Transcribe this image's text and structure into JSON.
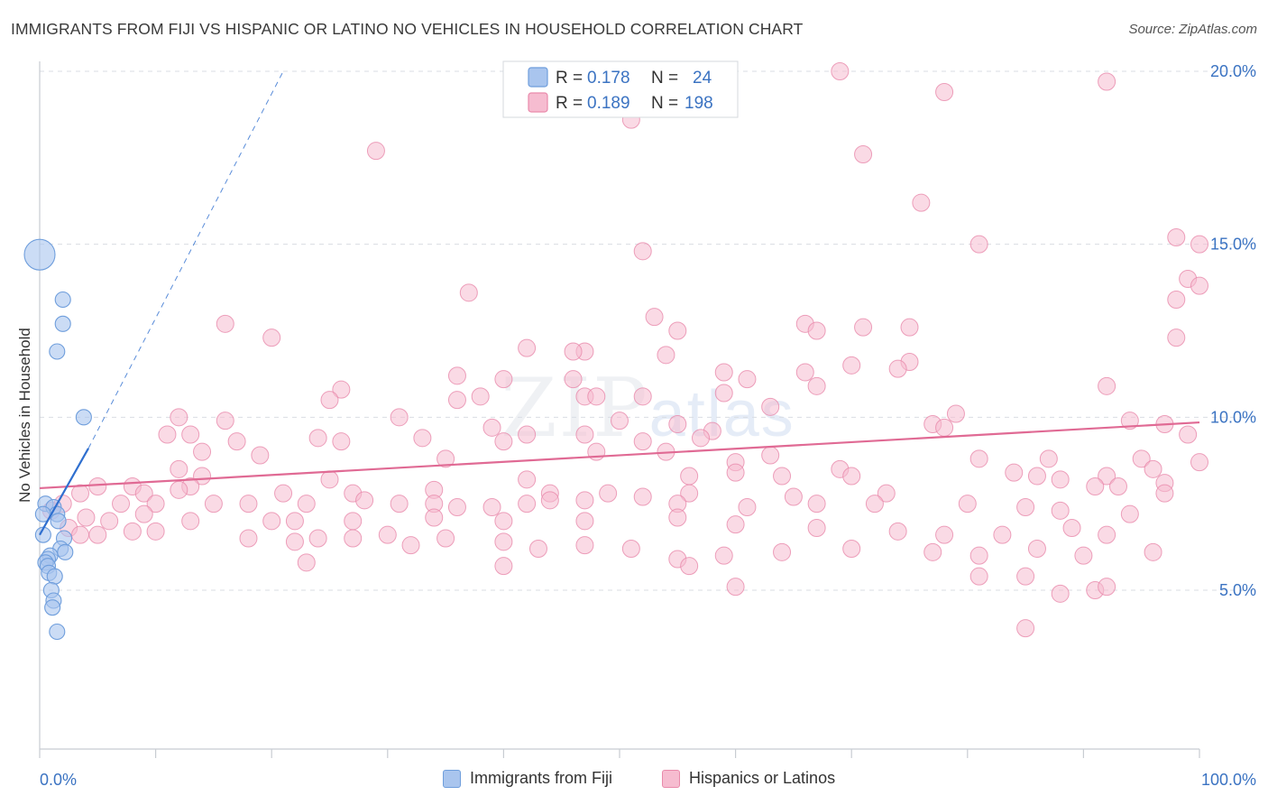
{
  "header": {
    "title": "IMMIGRANTS FROM FIJI VS HISPANIC OR LATINO NO VEHICLES IN HOUSEHOLD CORRELATION CHART",
    "source": "Source: ZipAtlas.com"
  },
  "watermark": {
    "zip": "ZIP",
    "atlas": "atlas"
  },
  "colors": {
    "fiji_fill": "#a9c5ee",
    "fiji_stroke": "#6f9edc",
    "fiji_line": "#2f6fcf",
    "hisp_fill": "#f6bcd0",
    "hisp_stroke": "#e98aab",
    "hisp_line": "#e06a94",
    "tick_text": "#3b73c2",
    "grid": "#d9dde3"
  },
  "legend": {
    "rows": [
      {
        "r_label": "R = ",
        "r_value": "0.178",
        "n_label": "N = ",
        "n_value": "24"
      },
      {
        "r_label": "R = ",
        "r_value": "0.189",
        "n_label": "N = ",
        "n_value": "198"
      }
    ]
  },
  "bottom_legend": {
    "fiji": "Immigrants from Fiji",
    "hisp": "Hispanics or Latinos"
  },
  "chart_data": {
    "type": "scatter",
    "title": "IMMIGRANTS FROM FIJI VS HISPANIC OR LATINO NO VEHICLES IN HOUSEHOLD CORRELATION CHART",
    "xlabel": "",
    "ylabel": "No Vehicles in Household",
    "xlim": [
      0,
      100
    ],
    "ylim": [
      0,
      21
    ],
    "x_tick_labels": [
      "0.0%",
      "100.0%"
    ],
    "y_ticks": [
      5,
      10,
      15,
      20
    ],
    "y_tick_labels": [
      "5.0%",
      "10.0%",
      "15.0%",
      "20.0%"
    ],
    "grid": true,
    "legend_position": "top-center",
    "series": [
      {
        "name": "Immigrants from Fiji",
        "r": 0.178,
        "n": 24,
        "trend": {
          "x0": 0,
          "y0": 6.6,
          "x1": 4.2,
          "y1": 9.1,
          "dash_to_x": 21,
          "dash_to_y": 20.0
        },
        "points": [
          [
            0,
            14.7,
            3
          ],
          [
            2,
            13.4,
            1
          ],
          [
            2,
            12.7,
            1
          ],
          [
            1.5,
            11.9,
            1
          ],
          [
            3.8,
            10.0,
            1
          ],
          [
            0.5,
            7.5,
            1
          ],
          [
            1.2,
            7.4,
            1
          ],
          [
            1.5,
            7.2,
            1
          ],
          [
            0.3,
            7.2,
            1
          ],
          [
            1.6,
            7.0,
            1
          ],
          [
            0.3,
            6.6,
            1
          ],
          [
            2.1,
            6.5,
            1
          ],
          [
            1.8,
            6.2,
            1
          ],
          [
            2.2,
            6.1,
            1
          ],
          [
            0.9,
            6.0,
            1
          ],
          [
            0.7,
            5.9,
            1
          ],
          [
            0.5,
            5.8,
            1
          ],
          [
            0.7,
            5.7,
            1
          ],
          [
            0.8,
            5.5,
            1
          ],
          [
            1.3,
            5.4,
            1
          ],
          [
            1.0,
            5.0,
            1
          ],
          [
            1.2,
            4.7,
            1
          ],
          [
            1.1,
            4.5,
            1
          ],
          [
            1.5,
            3.8,
            1
          ]
        ]
      },
      {
        "name": "Hispanics or Latinos",
        "r": 0.189,
        "n": 198,
        "trend": {
          "x0": 0,
          "y0": 7.95,
          "x1": 100,
          "y1": 9.85
        },
        "points": [
          [
            56,
            20.0
          ],
          [
            69,
            20.0
          ],
          [
            92,
            19.7
          ],
          [
            78,
            19.4
          ],
          [
            51,
            18.6
          ],
          [
            29,
            17.7
          ],
          [
            71,
            17.6
          ],
          [
            76,
            16.2
          ],
          [
            98,
            15.2
          ],
          [
            81,
            15.0
          ],
          [
            100,
            15.0
          ],
          [
            52,
            14.8
          ],
          [
            99,
            14.0
          ],
          [
            100,
            13.8
          ],
          [
            37,
            13.6
          ],
          [
            98,
            13.4
          ],
          [
            53,
            12.9
          ],
          [
            66,
            12.7
          ],
          [
            16,
            12.7
          ],
          [
            71,
            12.6
          ],
          [
            75,
            12.6
          ],
          [
            67,
            12.5
          ],
          [
            55,
            12.5
          ],
          [
            20,
            12.3
          ],
          [
            98,
            12.3
          ],
          [
            42,
            12.0
          ],
          [
            47,
            11.9
          ],
          [
            46,
            11.9
          ],
          [
            54,
            11.8
          ],
          [
            75,
            11.6
          ],
          [
            70,
            11.5
          ],
          [
            74,
            11.4
          ],
          [
            66,
            11.3
          ],
          [
            59,
            11.3
          ],
          [
            61,
            11.1
          ],
          [
            40,
            11.1
          ],
          [
            36,
            11.2
          ],
          [
            46,
            11.1
          ],
          [
            67,
            10.9
          ],
          [
            92,
            10.9
          ],
          [
            26,
            10.8
          ],
          [
            59,
            10.7
          ],
          [
            47,
            10.6
          ],
          [
            48,
            10.6
          ],
          [
            52,
            10.6
          ],
          [
            38,
            10.6
          ],
          [
            36,
            10.5
          ],
          [
            25,
            10.5
          ],
          [
            63,
            10.3
          ],
          [
            79,
            10.1
          ],
          [
            12,
            10.0
          ],
          [
            31,
            10.0
          ],
          [
            16,
            9.9
          ],
          [
            94,
            9.9
          ],
          [
            77,
            9.8
          ],
          [
            97,
            9.8
          ],
          [
            50,
            9.9
          ],
          [
            55,
            9.8
          ],
          [
            58,
            9.6
          ],
          [
            39,
            9.7
          ],
          [
            78,
            9.7
          ],
          [
            11,
            9.5
          ],
          [
            13,
            9.5
          ],
          [
            47,
            9.5
          ],
          [
            57,
            9.4
          ],
          [
            24,
            9.4
          ],
          [
            33,
            9.4
          ],
          [
            42,
            9.5
          ],
          [
            99,
            9.5
          ],
          [
            52,
            9.3
          ],
          [
            40,
            9.3
          ],
          [
            26,
            9.3
          ],
          [
            17,
            9.3
          ],
          [
            14,
            9.0
          ],
          [
            48,
            9.0
          ],
          [
            54,
            9.0
          ],
          [
            19,
            8.9
          ],
          [
            63,
            8.9
          ],
          [
            81,
            8.8
          ],
          [
            35,
            8.8
          ],
          [
            60,
            8.7
          ],
          [
            87,
            8.8
          ],
          [
            95,
            8.8
          ],
          [
            100,
            8.7
          ],
          [
            12,
            8.5
          ],
          [
            69,
            8.5
          ],
          [
            60,
            8.4
          ],
          [
            84,
            8.4
          ],
          [
            92,
            8.3
          ],
          [
            96,
            8.5
          ],
          [
            97,
            8.1
          ],
          [
            14,
            8.3
          ],
          [
            25,
            8.2
          ],
          [
            42,
            8.2
          ],
          [
            56,
            8.3
          ],
          [
            64,
            8.3
          ],
          [
            70,
            8.3
          ],
          [
            86,
            8.3
          ],
          [
            93,
            8.0
          ],
          [
            88,
            8.2
          ],
          [
            91,
            8.0
          ],
          [
            8,
            8.0
          ],
          [
            13,
            8.0
          ],
          [
            9,
            7.8
          ],
          [
            3.5,
            7.8
          ],
          [
            5,
            8.0
          ],
          [
            12,
            7.9
          ],
          [
            21,
            7.8
          ],
          [
            27,
            7.8
          ],
          [
            34,
            7.9
          ],
          [
            44,
            7.8
          ],
          [
            49,
            7.8
          ],
          [
            52,
            7.7
          ],
          [
            56,
            7.8
          ],
          [
            65,
            7.7
          ],
          [
            97,
            7.8
          ],
          [
            73,
            7.8
          ],
          [
            2,
            7.5
          ],
          [
            7,
            7.5
          ],
          [
            10,
            7.5
          ],
          [
            15,
            7.5
          ],
          [
            18,
            7.5
          ],
          [
            23,
            7.5
          ],
          [
            28,
            7.6
          ],
          [
            31,
            7.5
          ],
          [
            34,
            7.5
          ],
          [
            36,
            7.4
          ],
          [
            39,
            7.4
          ],
          [
            42,
            7.5
          ],
          [
            44,
            7.6
          ],
          [
            47,
            7.6
          ],
          [
            55,
            7.5
          ],
          [
            61,
            7.4
          ],
          [
            67,
            7.5
          ],
          [
            72,
            7.5
          ],
          [
            80,
            7.5
          ],
          [
            85,
            7.4
          ],
          [
            88,
            7.3
          ],
          [
            94,
            7.2
          ],
          [
            4,
            7.1
          ],
          [
            6,
            7.0
          ],
          [
            9,
            7.2
          ],
          [
            13,
            7.0
          ],
          [
            20,
            7.0
          ],
          [
            22,
            7.0
          ],
          [
            27,
            7.0
          ],
          [
            34,
            7.1
          ],
          [
            40,
            7.0
          ],
          [
            47,
            7.0
          ],
          [
            55,
            7.1
          ],
          [
            60,
            6.9
          ],
          [
            67,
            6.8
          ],
          [
            74,
            6.7
          ],
          [
            78,
            6.6
          ],
          [
            83,
            6.6
          ],
          [
            89,
            6.8
          ],
          [
            92,
            6.6
          ],
          [
            1,
            7.3
          ],
          [
            2.5,
            6.8
          ],
          [
            3.5,
            6.6
          ],
          [
            5,
            6.6
          ],
          [
            8,
            6.7
          ],
          [
            10,
            6.7
          ],
          [
            18,
            6.5
          ],
          [
            22,
            6.4
          ],
          [
            24,
            6.5
          ],
          [
            27,
            6.5
          ],
          [
            30,
            6.6
          ],
          [
            32,
            6.3
          ],
          [
            35,
            6.5
          ],
          [
            40,
            6.4
          ],
          [
            43,
            6.2
          ],
          [
            47,
            6.3
          ],
          [
            51,
            6.2
          ],
          [
            55,
            5.9
          ],
          [
            59,
            6.0
          ],
          [
            64,
            6.1
          ],
          [
            70,
            6.2
          ],
          [
            77,
            6.1
          ],
          [
            81,
            6.0
          ],
          [
            86,
            6.2
          ],
          [
            90,
            6.0
          ],
          [
            96,
            6.1
          ],
          [
            23,
            5.8
          ],
          [
            40,
            5.7
          ],
          [
            56,
            5.7
          ],
          [
            81,
            5.4
          ],
          [
            85,
            5.4
          ],
          [
            60,
            5.1
          ],
          [
            88,
            4.9
          ],
          [
            91,
            5.0
          ],
          [
            92,
            5.1
          ],
          [
            85,
            3.9
          ]
        ]
      }
    ]
  }
}
